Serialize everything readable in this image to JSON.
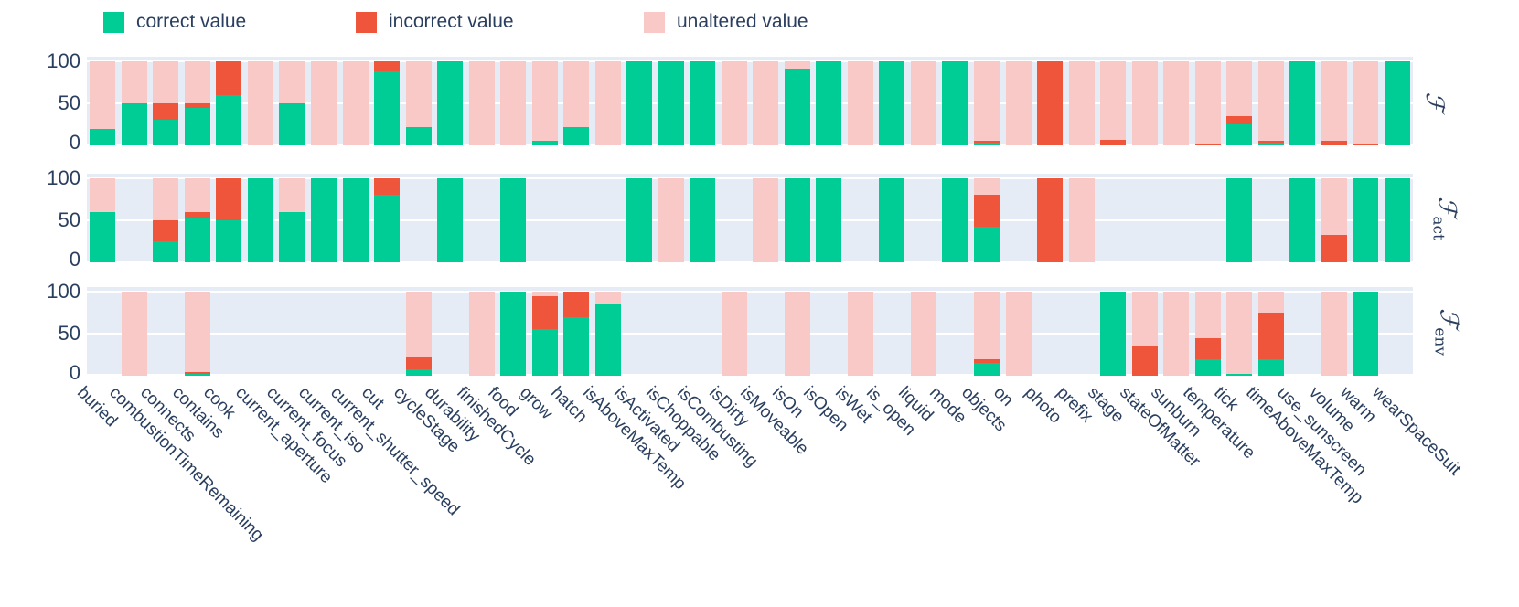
{
  "legend": [
    {
      "label": "correct value",
      "color": "#00CC96"
    },
    {
      "label": "incorrect value",
      "color": "#EF553B"
    },
    {
      "label": "unaltered value",
      "color": "#F8C9C6"
    }
  ],
  "axis": {
    "yticks": [
      "100",
      "50",
      "0"
    ],
    "ymin_label": "0",
    "ymax_label": "100"
  },
  "chart_data": {
    "type": "bar",
    "stacked": true,
    "orientation": "vertical",
    "ylim": [
      0,
      100
    ],
    "yticks": [
      0,
      50,
      100
    ],
    "grid": true,
    "legend_position": "top",
    "plot_bgcolor": "#E5ECF6",
    "gridcolor": "#FFFFFF",
    "textcolor": "#2A3F5F",
    "segment_names": [
      "correct",
      "incorrect",
      "unaltered"
    ],
    "segment_labels": [
      "correct value",
      "incorrect value",
      "unaltered value"
    ],
    "colors": {
      "correct": "#00CC96",
      "incorrect": "#EF553B",
      "unaltered": "#F8C9C6"
    },
    "categories": [
      "buried",
      "combustionTimeRemaining",
      "connects",
      "contains",
      "cook",
      "current_aperture",
      "current_focus",
      "current_iso",
      "current_shutter_speed",
      "cut",
      "cycleStage",
      "durability",
      "finishedCycle",
      "food",
      "grow",
      "hatch",
      "isAboveMaxTemp",
      "isActivated",
      "isChoppable",
      "isCombusting",
      "isDirty",
      "isMoveable",
      "isOn",
      "isOpen",
      "isWet",
      "is_open",
      "liquid",
      "mode",
      "objects",
      "on",
      "photo",
      "prefix",
      "stage",
      "stateOfMatter",
      "sunburn",
      "temperature",
      "tick",
      "timeAboveMaxTemp",
      "use_sunscreen",
      "volume",
      "warm",
      "wearSpaceSuit"
    ],
    "panels": [
      {
        "name": "F",
        "label_main": "ℱ",
        "label_sub": "",
        "values": [
          [
            20,
            0,
            80
          ],
          [
            50,
            0,
            50
          ],
          [
            30,
            20,
            50
          ],
          [
            45,
            5,
            50
          ],
          [
            60,
            40,
            0
          ],
          [
            0,
            0,
            100
          ],
          [
            50,
            0,
            50
          ],
          [
            0,
            0,
            100
          ],
          [
            0,
            0,
            100
          ],
          [
            88,
            12,
            0
          ],
          [
            22,
            0,
            78
          ],
          [
            100,
            0,
            0
          ],
          [
            0,
            0,
            100
          ],
          [
            0,
            0,
            100
          ],
          [
            5,
            0,
            95
          ],
          [
            22,
            0,
            78
          ],
          [
            0,
            0,
            100
          ],
          [
            100,
            0,
            0
          ],
          [
            100,
            0,
            0
          ],
          [
            100,
            0,
            0
          ],
          [
            0,
            0,
            100
          ],
          [
            0,
            0,
            100
          ],
          [
            90,
            0,
            10
          ],
          [
            100,
            0,
            0
          ],
          [
            0,
            0,
            100
          ],
          [
            100,
            0,
            0
          ],
          [
            0,
            0,
            100
          ],
          [
            100,
            0,
            0
          ],
          [
            3,
            3,
            94
          ],
          [
            0,
            0,
            100
          ],
          [
            0,
            100,
            0
          ],
          [
            0,
            0,
            100
          ],
          [
            0,
            7,
            93
          ],
          [
            0,
            0,
            100
          ],
          [
            0,
            0,
            100
          ],
          [
            0,
            2,
            98
          ],
          [
            25,
            10,
            65
          ],
          [
            3,
            3,
            94
          ],
          [
            100,
            0,
            0
          ],
          [
            0,
            5,
            95
          ],
          [
            0,
            2,
            98
          ],
          [
            100,
            0,
            0
          ]
        ]
      },
      {
        "name": "F_act",
        "label_main": "ℱ",
        "label_sub": "act",
        "values": [
          [
            60,
            0,
            40
          ],
          null,
          [
            25,
            25,
            50
          ],
          [
            52,
            8,
            40
          ],
          [
            50,
            50,
            0
          ],
          [
            100,
            0,
            0
          ],
          [
            60,
            0,
            40
          ],
          [
            100,
            0,
            0
          ],
          [
            100,
            0,
            0
          ],
          [
            80,
            20,
            0
          ],
          null,
          [
            100,
            0,
            0
          ],
          null,
          [
            100,
            0,
            0
          ],
          null,
          null,
          null,
          [
            100,
            0,
            0
          ],
          [
            0,
            0,
            100
          ],
          [
            100,
            0,
            0
          ],
          null,
          [
            0,
            0,
            100
          ],
          [
            100,
            0,
            0
          ],
          [
            100,
            0,
            0
          ],
          null,
          [
            100,
            0,
            0
          ],
          null,
          [
            100,
            0,
            0
          ],
          [
            42,
            38,
            20
          ],
          null,
          [
            0,
            100,
            0
          ],
          [
            0,
            0,
            100
          ],
          null,
          null,
          null,
          null,
          [
            100,
            0,
            0
          ],
          null,
          [
            100,
            0,
            0
          ],
          [
            0,
            33,
            67
          ],
          [
            100,
            0,
            0
          ],
          [
            100,
            0,
            0
          ]
        ]
      },
      {
        "name": "F_env",
        "label_main": "ℱ",
        "label_sub": "env",
        "values": [
          null,
          [
            0,
            0,
            100
          ],
          null,
          [
            2,
            2,
            96
          ],
          null,
          null,
          null,
          null,
          null,
          null,
          [
            8,
            14,
            78
          ],
          null,
          [
            0,
            0,
            100
          ],
          [
            100,
            0,
            0
          ],
          [
            55,
            40,
            5
          ],
          [
            70,
            30,
            0
          ],
          [
            85,
            0,
            15
          ],
          null,
          null,
          null,
          [
            0,
            0,
            100
          ],
          null,
          [
            0,
            0,
            100
          ],
          null,
          [
            0,
            0,
            100
          ],
          null,
          [
            0,
            0,
            100
          ],
          null,
          [
            15,
            5,
            80
          ],
          [
            0,
            0,
            100
          ],
          null,
          null,
          [
            100,
            0,
            0
          ],
          [
            0,
            35,
            65
          ],
          [
            0,
            0,
            100
          ],
          [
            20,
            25,
            55
          ],
          [
            2,
            0,
            98
          ],
          [
            20,
            55,
            25
          ],
          null,
          [
            0,
            0,
            100
          ],
          [
            100,
            0,
            0
          ],
          null
        ]
      }
    ]
  }
}
